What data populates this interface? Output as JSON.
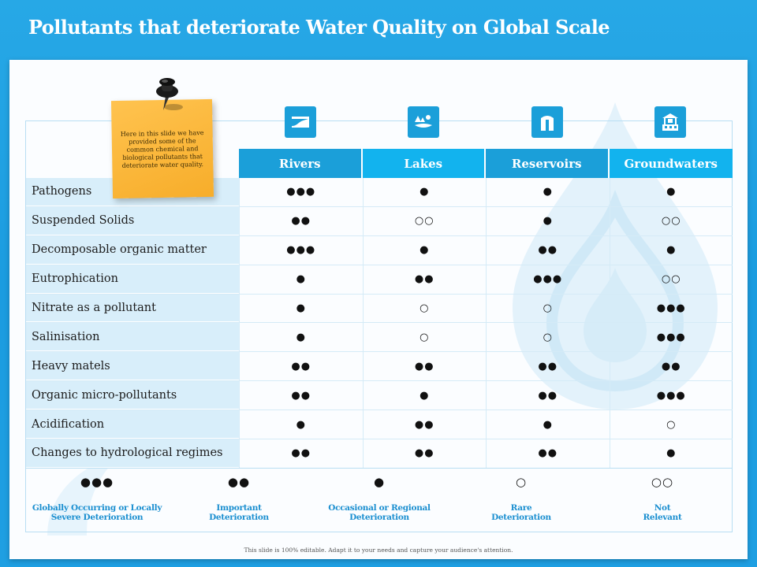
{
  "title": "Pollutants that deteriorate Water Quality on Global Scale",
  "note": "Here in this slide we have provided some of the common chemical and biological pollutants that deteriorate water quality.",
  "columns": [
    "Rivers",
    "Lakes",
    "Reservoirs",
    "Groundwaters"
  ],
  "column_icons": [
    "river-icon",
    "lake-icon",
    "reservoir-icon",
    "groundwater-well-icon"
  ],
  "colors": {
    "accent": "#1b9fd9",
    "header_bg": "#1b9fd9",
    "header_bg_alt": "#0fb0ea",
    "label_bg": "#d8eefa",
    "legend_text": "#1b8fd0"
  },
  "rows": [
    {
      "label": "Pathogens",
      "values": [
        "●●●",
        "●",
        "●",
        "●"
      ]
    },
    {
      "label": "Suspended Solids",
      "values": [
        "●●",
        "○○",
        "●",
        "○○"
      ]
    },
    {
      "label": "Decomposable organic matter",
      "values": [
        "●●●",
        "●",
        "●●",
        "●"
      ]
    },
    {
      "label": "Eutrophication",
      "values": [
        "●",
        "●●",
        "●●●",
        "○○"
      ]
    },
    {
      "label": "Nitrate as a pollutant",
      "values": [
        "●",
        "○",
        "○",
        "●●●"
      ]
    },
    {
      "label": "Salinisation",
      "values": [
        "●",
        "○",
        "○",
        "●●●"
      ]
    },
    {
      "label": "Heavy matels",
      "values": [
        "●●",
        "●●",
        "●●",
        "●●"
      ]
    },
    {
      "label": "Organic micro-pollutants",
      "values": [
        "●●",
        "●",
        "●●",
        "●●●"
      ]
    },
    {
      "label": "Acidification",
      "values": [
        "●",
        "●●",
        "●",
        "○"
      ]
    },
    {
      "label": "Changes to hydrological regimes",
      "values": [
        "●●",
        "●●",
        "●●",
        "●"
      ]
    }
  ],
  "legend": [
    {
      "symbol": "●●●",
      "text": "Globally Occurring or Locally\nSevere Deterioration"
    },
    {
      "symbol": "●●",
      "text": "Important\nDeterioration"
    },
    {
      "symbol": "●",
      "text": "Occasional or Regional\nDeterioration"
    },
    {
      "symbol": "○",
      "text": "Rare\nDeterioration"
    },
    {
      "symbol": "○○",
      "text": "Not\nRelevant"
    }
  ],
  "footer": "This slide is 100% editable. Adapt it to your needs and capture your audience's attention."
}
